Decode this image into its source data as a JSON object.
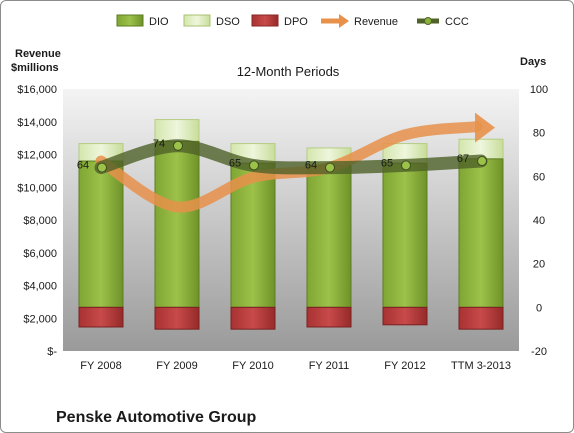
{
  "chart_data": {
    "type": "bar",
    "title": "12-Month Periods",
    "company": "Penske Automotive Group",
    "left_axis_title": [
      "Revenue",
      "$millions"
    ],
    "right_axis_title": "Days",
    "categories": [
      "FY 2008",
      "FY 2009",
      "FY 2010",
      "FY 2011",
      "FY 2012",
      "TTM 3-2013"
    ],
    "left_axis": {
      "min": 0,
      "max": 16000,
      "step": 2000,
      "tick_labels": [
        "$-",
        "$2,000",
        "$4,000",
        "$6,000",
        "$8,000",
        "$10,000",
        "$12,000",
        "$14,000",
        "$16,000"
      ]
    },
    "right_axis": {
      "min": -20,
      "max": 100,
      "step": 20,
      "tick_labels": [
        "-20",
        "0",
        "20",
        "40",
        "60",
        "80",
        "100"
      ]
    },
    "legend_position": "top",
    "legend": [
      "DIO",
      "DSO",
      "DPO",
      "Revenue",
      "CCC"
    ],
    "series": [
      {
        "name": "DIO",
        "kind": "stacked-bar",
        "axis": "right",
        "color": "#8cb43c",
        "values": [
          67,
          76,
          66,
          65,
          66,
          68
        ]
      },
      {
        "name": "DSO",
        "kind": "stacked-bar",
        "axis": "right",
        "color": "#dfeec0",
        "values": [
          8,
          10,
          9,
          8,
          9,
          9
        ]
      },
      {
        "name": "DPO",
        "kind": "stacked-bar-negative",
        "axis": "right",
        "color": "#b83a3a",
        "values": [
          -9,
          -10,
          -10,
          -9,
          -8,
          -10
        ]
      },
      {
        "name": "Revenue",
        "kind": "line-arrow",
        "axis": "left",
        "color": "#e8914a",
        "values": [
          11600,
          8800,
          10600,
          11200,
          13200,
          13700
        ]
      },
      {
        "name": "CCC",
        "kind": "line",
        "axis": "right",
        "color": "#4f6228",
        "values": [
          64,
          74,
          65,
          64,
          65,
          67
        ],
        "data_labels": [
          "64",
          "74",
          "65",
          "64",
          "65",
          "67"
        ]
      }
    ],
    "grid": false
  }
}
